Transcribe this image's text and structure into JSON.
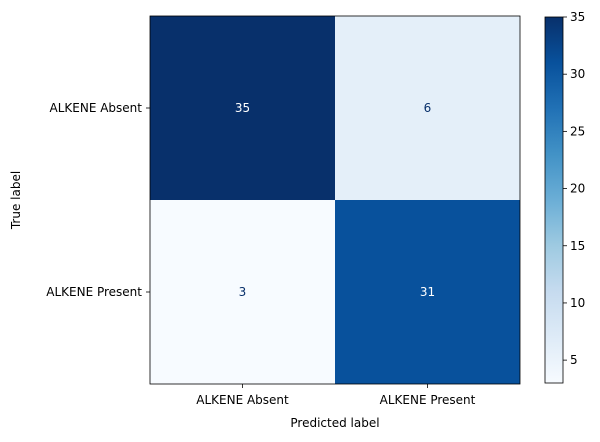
{
  "chart_data": {
    "type": "heatmap",
    "title": "",
    "xlabel": "Predicted label",
    "ylabel": "True label",
    "x_categories": [
      "ALKENE Absent",
      "ALKENE Present"
    ],
    "y_categories": [
      "ALKENE Absent",
      "ALKENE Present"
    ],
    "values": [
      [
        35,
        6
      ],
      [
        3,
        31
      ]
    ],
    "colormap": "Blues",
    "colorbar": {
      "min": 3,
      "max": 35,
      "ticks": [
        5,
        10,
        15,
        20,
        25,
        30,
        35
      ]
    }
  }
}
